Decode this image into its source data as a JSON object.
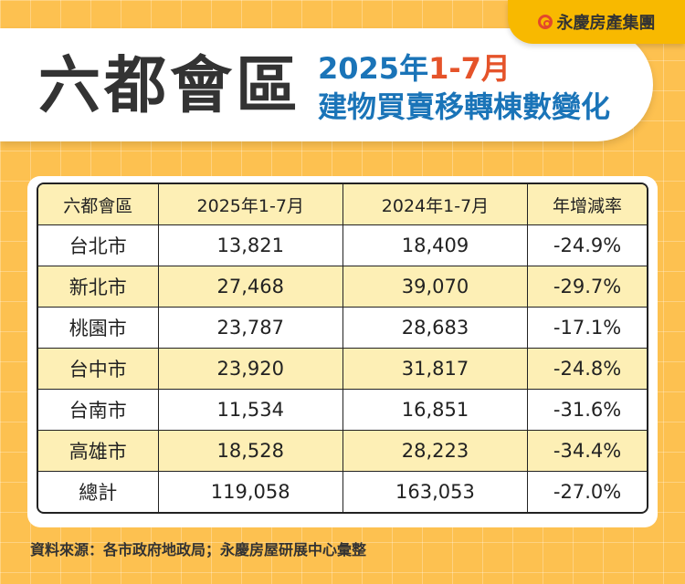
{
  "brand": {
    "logo_text": "永慶房產集團"
  },
  "header": {
    "title": "六都會區",
    "subtitle_year": "2025年",
    "subtitle_period": "1-7月",
    "subtitle_line2": "建物買賣移轉棟數變化"
  },
  "colors": {
    "background": "#fdc150",
    "title_blue": "#1a74b8",
    "accent_red": "#e5532a",
    "row_highlight": "#fdefb5"
  },
  "chart_data": {
    "type": "table",
    "columns": [
      "六都會區",
      "2025年1-7月",
      "2024年1-7月",
      "年增減率"
    ],
    "rows": [
      [
        "台北市",
        "13,821",
        "18,409",
        "-24.9%"
      ],
      [
        "新北市",
        "27,468",
        "39,070",
        "-29.7%"
      ],
      [
        "桃園市",
        "23,787",
        "28,683",
        "-17.1%"
      ],
      [
        "台中市",
        "23,920",
        "31,817",
        "-24.8%"
      ],
      [
        "台南市",
        "11,534",
        "16,851",
        "-31.6%"
      ],
      [
        "高雄市",
        "18,528",
        "28,223",
        "-34.4%"
      ],
      [
        "總計",
        "119,058",
        "163,053",
        "-27.0%"
      ]
    ]
  },
  "footer": {
    "source": "資料來源：各市政府地政局；永慶房屋研展中心彙整"
  }
}
